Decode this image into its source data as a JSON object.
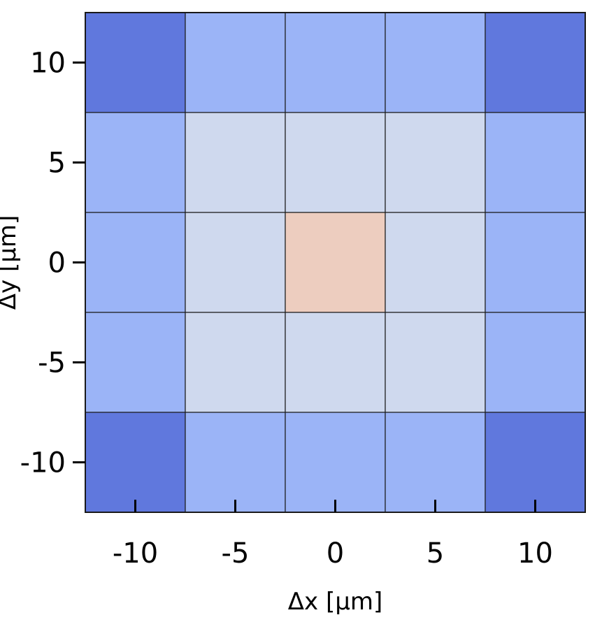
{
  "chart_data": {
    "type": "heatmap",
    "title": "",
    "xlabel": "Δx [μm]",
    "ylabel": "Δy [μm]",
    "x": [
      -10,
      -5,
      0,
      5,
      10
    ],
    "y": [
      10,
      5,
      0,
      -5,
      -10
    ],
    "xlim": [
      -12.5,
      12.5
    ],
    "ylim": [
      -12.5,
      12.5
    ],
    "x_ticks": [
      "-10",
      "-5",
      "0",
      "5",
      "10"
    ],
    "y_ticks": [
      "10",
      "5",
      "0",
      "-5",
      "-10"
    ],
    "levels": [
      [
        0,
        1,
        1,
        1,
        0
      ],
      [
        1,
        2,
        2,
        2,
        1
      ],
      [
        1,
        2,
        3,
        2,
        1
      ],
      [
        1,
        2,
        2,
        2,
        1
      ],
      [
        0,
        1,
        1,
        1,
        0
      ]
    ],
    "colors": [
      "#6078dd",
      "#9bb4f7",
      "#cfd9ee",
      "#edcdbf"
    ],
    "grid": false,
    "colorbar": false
  }
}
